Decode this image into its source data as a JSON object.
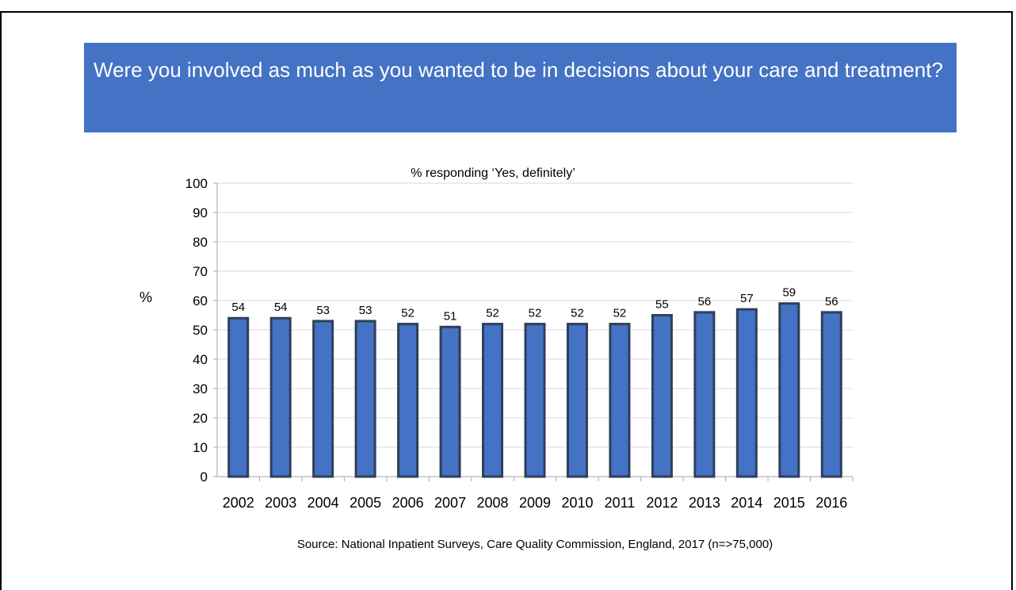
{
  "slide": {
    "title": "Were you involved as much as you wanted to be in decisions about your care and treatment?",
    "source": "Source: National Inpatient Surveys, Care Quality Commission,  England, 2017 (n=>75,000)"
  },
  "chart_data": {
    "type": "bar",
    "title": "% responding ‘Yes, definitely’",
    "ylabel": "%",
    "xlabel": "",
    "ylim": [
      0,
      100
    ],
    "yticks": [
      0,
      10,
      20,
      30,
      40,
      50,
      60,
      70,
      80,
      90,
      100
    ],
    "categories": [
      "2002",
      "2003",
      "2004",
      "2005",
      "2006",
      "2007",
      "2008",
      "2009",
      "2010",
      "2011",
      "2012",
      "2013",
      "2014",
      "2015",
      "2016"
    ],
    "values": [
      54,
      54,
      53,
      53,
      52,
      51,
      52,
      52,
      52,
      52,
      55,
      56,
      57,
      59,
      56
    ],
    "grid": true,
    "legend": "none",
    "colors": {
      "bar": "#4472c4",
      "bar_edge": "#2f3f5a",
      "grid": "#d9d9d9",
      "axis": "#a6a6a6"
    }
  }
}
